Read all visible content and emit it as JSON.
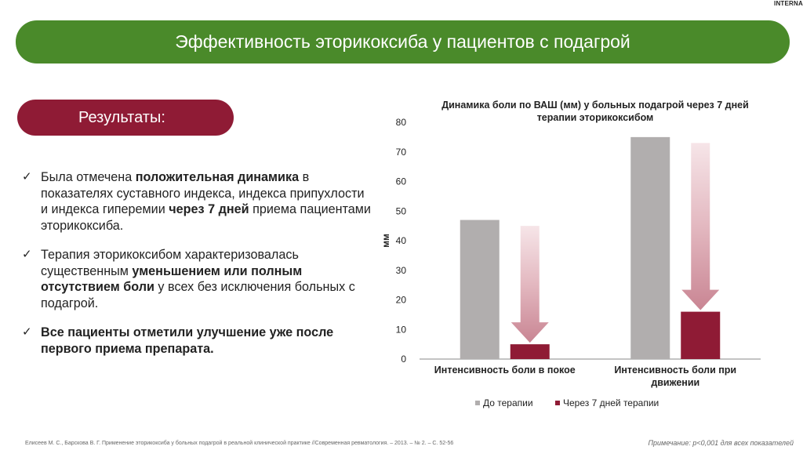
{
  "corner_tag": "INTERNA",
  "header": {
    "title": "Эффективность эторикоксиба у пациентов с подагрой"
  },
  "results": {
    "label": "Результаты:"
  },
  "bullets": [
    {
      "segments": [
        {
          "text": "Была отмечена ",
          "bold": false
        },
        {
          "text": "положительная динамика",
          "bold": true
        },
        {
          "text": " в показателях суставного индекса, индекса припухлости и индекса гиперемии ",
          "bold": false
        },
        {
          "text": "через 7 дней",
          "bold": true
        },
        {
          "text": " приема пациентами эторикоксиба.",
          "bold": false
        }
      ]
    },
    {
      "segments": [
        {
          "text": "Терапия эторикоксибом характеризовалась существенным ",
          "bold": false
        },
        {
          "text": "уменьшением или полным отсутствием боли",
          "bold": true
        },
        {
          "text": " у всех без исключения больных с подагрой.",
          "bold": false
        }
      ]
    },
    {
      "segments": [
        {
          "text": "Все пациенты отметили улучшение уже после первого приема препарата.",
          "bold": true
        }
      ]
    }
  ],
  "chart_data": {
    "type": "bar",
    "title": "Динамика боли по ВАШ (мм) у больных подагрой через 7 дней терапии эторикоксибом",
    "xlabel": "",
    "ylabel": "мм",
    "ylim": [
      0,
      80
    ],
    "yticks": [
      0,
      10,
      20,
      30,
      40,
      50,
      60,
      70,
      80
    ],
    "categories": [
      "Интенсивность боли в покое",
      "Интенсивность боли при движении"
    ],
    "series": [
      {
        "name": "До терапии",
        "values": [
          47,
          75
        ],
        "color": "#b1aeae"
      },
      {
        "name": "Через 7 дней терапии",
        "values": [
          5,
          16
        ],
        "color": "#8f1b35"
      }
    ],
    "grid": false,
    "legend": "bottom",
    "annotations": "decreasing arrows from pre-treatment level to post-treatment bar"
  },
  "footer": {
    "citation": "Елисеев М. С., Барскова В. Г. Применение эторикоксиба у больных подагрой в реальной клинической практике //Современная ревматология. – 2013. – № 2. – С. 52-56",
    "note": "Примечание: p<0,001 для всех показателей"
  }
}
